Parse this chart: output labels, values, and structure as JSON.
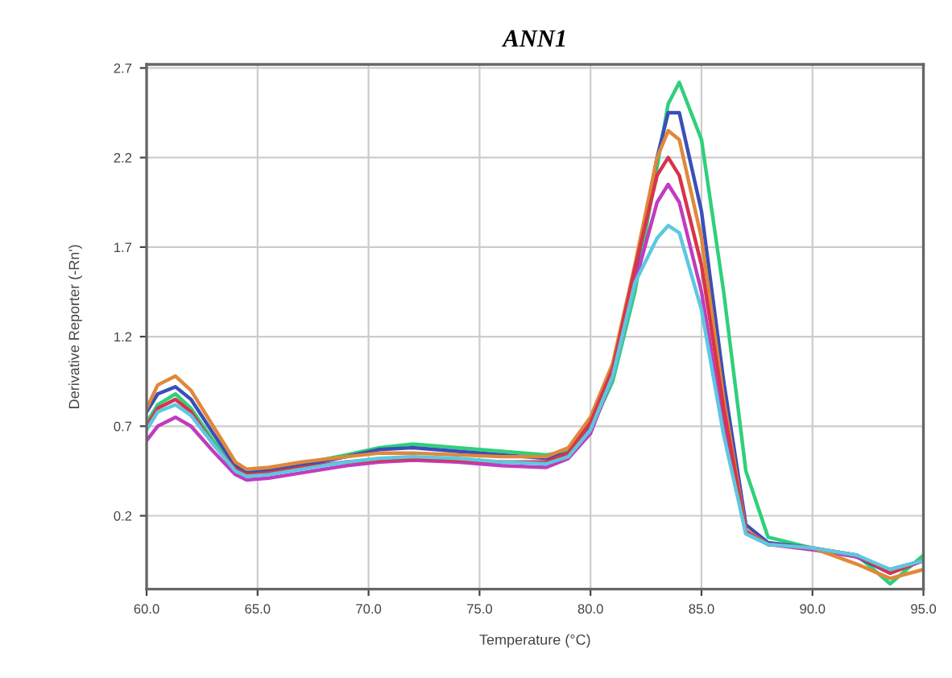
{
  "chart_data": {
    "type": "line",
    "title": "ANN1",
    "xlabel": "Temperature (°C)",
    "ylabel": "Derivative Reporter (-Rn')",
    "x": [
      60,
      60.5,
      61.3,
      62,
      63,
      64,
      64.5,
      65.5,
      67,
      69,
      70.5,
      72,
      74,
      76,
      78,
      79,
      80,
      81,
      82,
      83,
      83.5,
      84,
      85,
      86,
      87,
      88,
      90,
      92,
      93.5,
      95
    ],
    "series": [
      {
        "color": "#2fd07a",
        "values": [
          0.72,
          0.82,
          0.88,
          0.8,
          0.62,
          0.48,
          0.45,
          0.46,
          0.49,
          0.54,
          0.58,
          0.6,
          0.58,
          0.56,
          0.54,
          0.56,
          0.68,
          0.95,
          1.45,
          2.15,
          2.5,
          2.62,
          2.3,
          1.45,
          0.45,
          0.08,
          0.02,
          -0.02,
          -0.18,
          -0.02
        ]
      },
      {
        "color": "#3a4fb8",
        "values": [
          0.78,
          0.88,
          0.92,
          0.85,
          0.66,
          0.48,
          0.44,
          0.45,
          0.48,
          0.53,
          0.57,
          0.58,
          0.56,
          0.54,
          0.52,
          0.55,
          0.7,
          1.0,
          1.55,
          2.2,
          2.45,
          2.45,
          1.9,
          0.95,
          0.15,
          0.05,
          0.02,
          -0.03,
          -0.12,
          -0.05
        ]
      },
      {
        "color": "#c03cc0",
        "values": [
          0.62,
          0.7,
          0.75,
          0.7,
          0.56,
          0.43,
          0.4,
          0.41,
          0.44,
          0.48,
          0.5,
          0.51,
          0.5,
          0.48,
          0.47,
          0.52,
          0.66,
          0.98,
          1.5,
          1.95,
          2.05,
          1.95,
          1.45,
          0.7,
          0.1,
          0.04,
          0.01,
          -0.03,
          -0.1,
          -0.05
        ]
      },
      {
        "color": "#e0883a",
        "values": [
          0.8,
          0.93,
          0.98,
          0.9,
          0.7,
          0.5,
          0.46,
          0.47,
          0.5,
          0.53,
          0.55,
          0.55,
          0.54,
          0.53,
          0.53,
          0.58,
          0.75,
          1.05,
          1.6,
          2.2,
          2.35,
          2.3,
          1.75,
          0.85,
          0.12,
          0.04,
          0.02,
          -0.07,
          -0.15,
          -0.1
        ]
      },
      {
        "color": "#d8344a",
        "values": [
          0.7,
          0.8,
          0.85,
          0.78,
          0.6,
          0.46,
          0.43,
          0.44,
          0.47,
          0.5,
          0.51,
          0.52,
          0.51,
          0.5,
          0.5,
          0.55,
          0.72,
          1.02,
          1.58,
          2.1,
          2.2,
          2.1,
          1.6,
          0.8,
          0.11,
          0.04,
          0.02,
          -0.02,
          -0.12,
          -0.05
        ]
      },
      {
        "color": "#5cc8e0",
        "values": [
          0.68,
          0.78,
          0.82,
          0.76,
          0.6,
          0.45,
          0.42,
          0.43,
          0.46,
          0.5,
          0.52,
          0.53,
          0.52,
          0.5,
          0.49,
          0.53,
          0.68,
          0.98,
          1.5,
          1.75,
          1.82,
          1.78,
          1.35,
          0.65,
          0.1,
          0.04,
          0.02,
          -0.02,
          -0.1,
          -0.05
        ]
      }
    ],
    "xlim": [
      60,
      95
    ],
    "ylim": [
      -0.21,
      2.72
    ],
    "xticks": [
      {
        "value": 60,
        "label": "60.0"
      },
      {
        "value": 65,
        "label": "65.0"
      },
      {
        "value": 70,
        "label": "70.0"
      },
      {
        "value": 75,
        "label": "75.0"
      },
      {
        "value": 80,
        "label": "80.0"
      },
      {
        "value": 85,
        "label": "85.0"
      },
      {
        "value": 90,
        "label": "90.0"
      },
      {
        "value": 95,
        "label": "95.0"
      }
    ],
    "yticks": [
      0.2,
      0.7,
      1.2,
      1.7,
      2.2,
      2.7
    ],
    "grid": true,
    "legend": false
  }
}
